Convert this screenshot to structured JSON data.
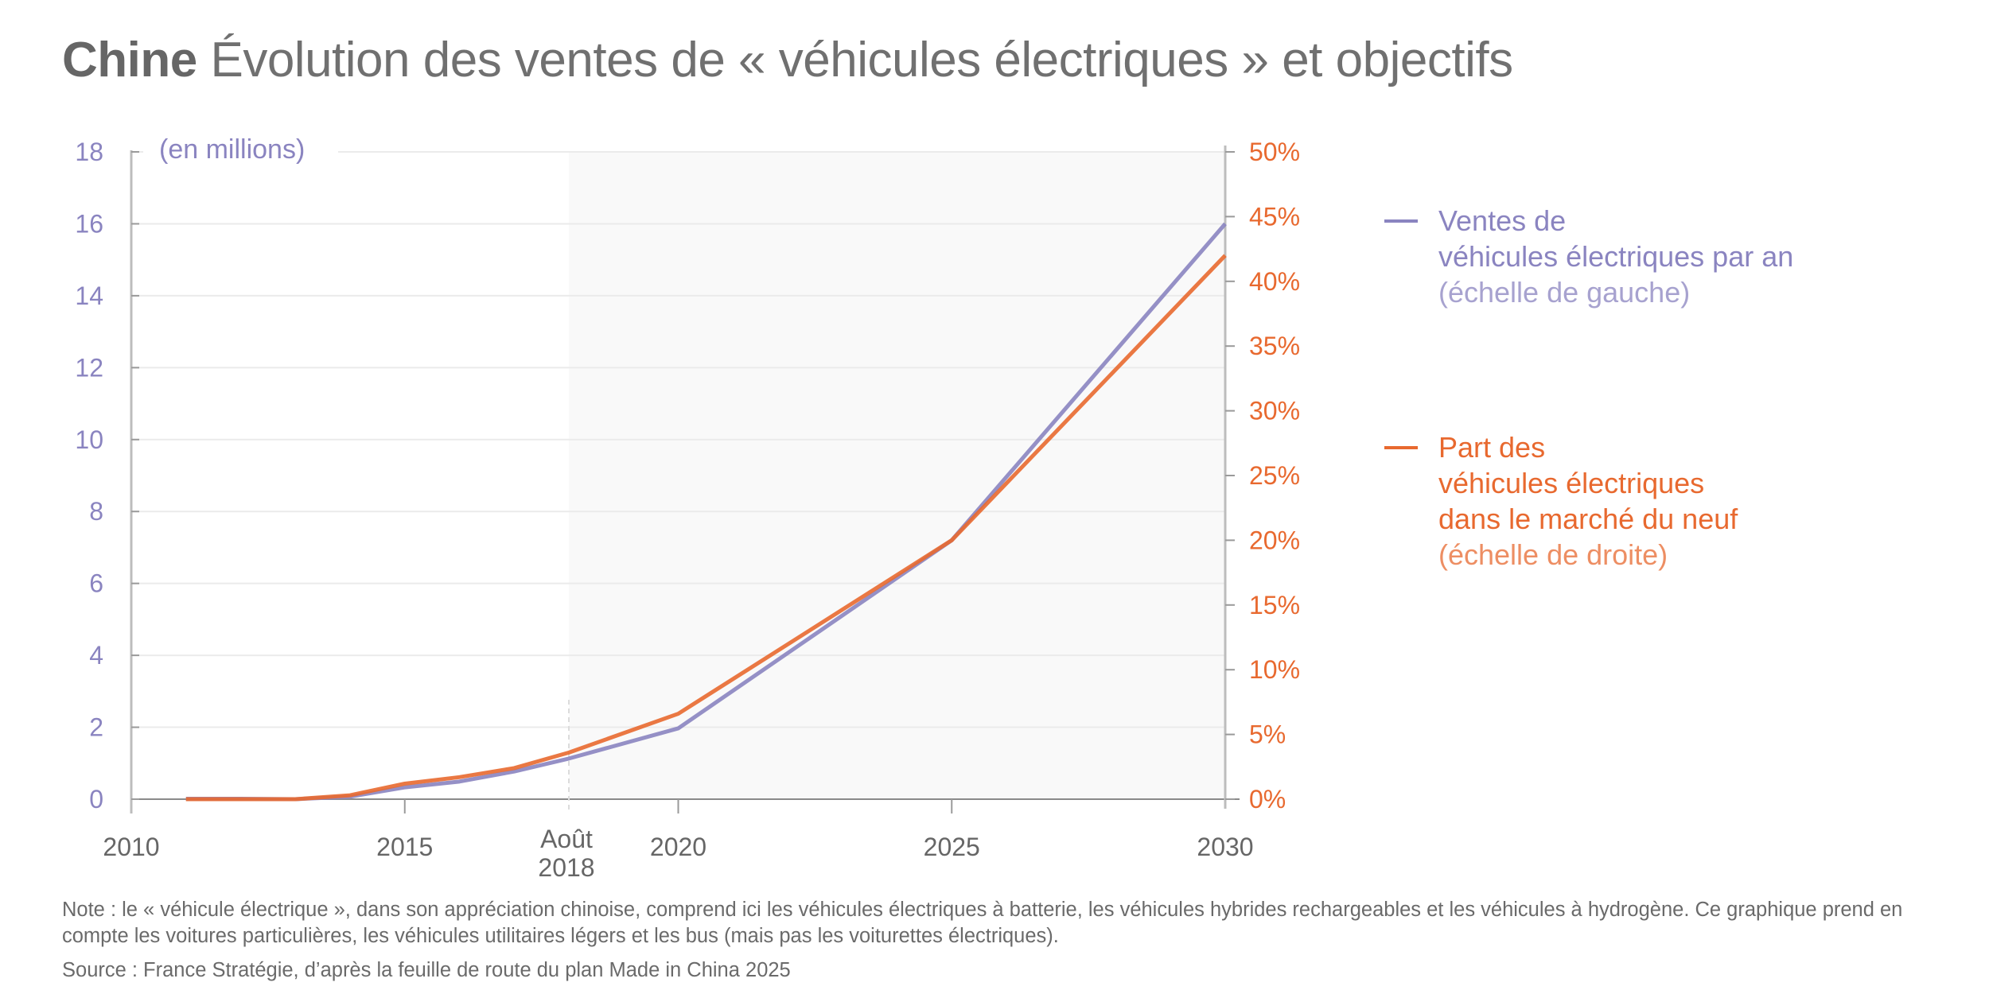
{
  "title": {
    "country": "Chine",
    "text": "Évolution des ventes de « véhicules électriques » et objectifs"
  },
  "colors": {
    "sales": "#8a84c0",
    "share": "#e8692f",
    "text": "#666666",
    "shade": "#f9f9f9"
  },
  "chart_data": {
    "type": "line",
    "title": "Chine Évolution des ventes de « véhicules électriques » et objectifs",
    "xlabel": "",
    "ylabel_left": "(en millions)",
    "ylabel_right": "",
    "xlim": [
      2010,
      2030
    ],
    "ylim_left": [
      0,
      18
    ],
    "ylim_right": [
      0,
      50
    ],
    "grid": true,
    "legend_position": "right",
    "x_ticks": [
      {
        "value": 2010,
        "label": "2010"
      },
      {
        "value": 2015,
        "label": "2015"
      },
      {
        "value": 2018,
        "label": "Août 2018",
        "line1": "Août",
        "line2": "2018",
        "dashed": true
      },
      {
        "value": 2020,
        "label": "2020"
      },
      {
        "value": 2025,
        "label": "2025"
      },
      {
        "value": 2030,
        "label": "2030"
      }
    ],
    "y_ticks_left": [
      0,
      2,
      4,
      6,
      8,
      10,
      12,
      14,
      16,
      18
    ],
    "y_ticks_right": [
      {
        "value": 0,
        "label": "0%"
      },
      {
        "value": 5,
        "label": "5%"
      },
      {
        "value": 10,
        "label": "10%"
      },
      {
        "value": 15,
        "label": "15%"
      },
      {
        "value": 20,
        "label": "20%"
      },
      {
        "value": 25,
        "label": "25%"
      },
      {
        "value": 30,
        "label": "30%"
      },
      {
        "value": 35,
        "label": "35%"
      },
      {
        "value": 40,
        "label": "40%"
      },
      {
        "value": 45,
        "label": "45%"
      },
      {
        "value": 50,
        "label": "50%"
      }
    ],
    "shaded_region": {
      "from": 2018,
      "to": 2030,
      "meaning": "objectifs (projection)"
    },
    "x": [
      2011,
      2012,
      2013,
      2014,
      2015,
      2016,
      2017,
      2018,
      2020,
      2025,
      2030
    ],
    "series": [
      {
        "name": "Ventes de véhicules électriques par an",
        "axis": "left",
        "unit": "millions",
        "values": [
          0.01,
          0.01,
          0.0,
          0.07,
          0.33,
          0.49,
          0.77,
          1.13,
          1.97,
          7.2,
          16.0
        ]
      },
      {
        "name": "Part des véhicules électriques dans le marché du neuf",
        "axis": "right",
        "unit": "%",
        "values": [
          0.0,
          0.0,
          0.0,
          0.3,
          1.2,
          1.7,
          2.4,
          3.6,
          6.6,
          20.0,
          42.0
        ]
      }
    ]
  },
  "legend": {
    "sales": {
      "line1": "Ventes de",
      "line2": "véhicules électriques par an",
      "scale": "(échelle de gauche)"
    },
    "share": {
      "line1": "Part des",
      "line2": "véhicules électriques",
      "line3": "dans le marché du neuf",
      "scale": "(échelle de droite)"
    }
  },
  "footer": {
    "note": "Note : le « véhicule électrique », dans son appréciation chinoise, comprend ici les véhicules électriques à batterie, les véhicules hybrides rechargeables et les véhicules à hydrogène. Ce graphique prend en compte les voitures particulières, les véhicules utilitaires légers et les bus (mais pas les voiturettes électriques).",
    "source": "Source : France Stratégie, d’après la feuille de route du plan Made in China 2025"
  }
}
